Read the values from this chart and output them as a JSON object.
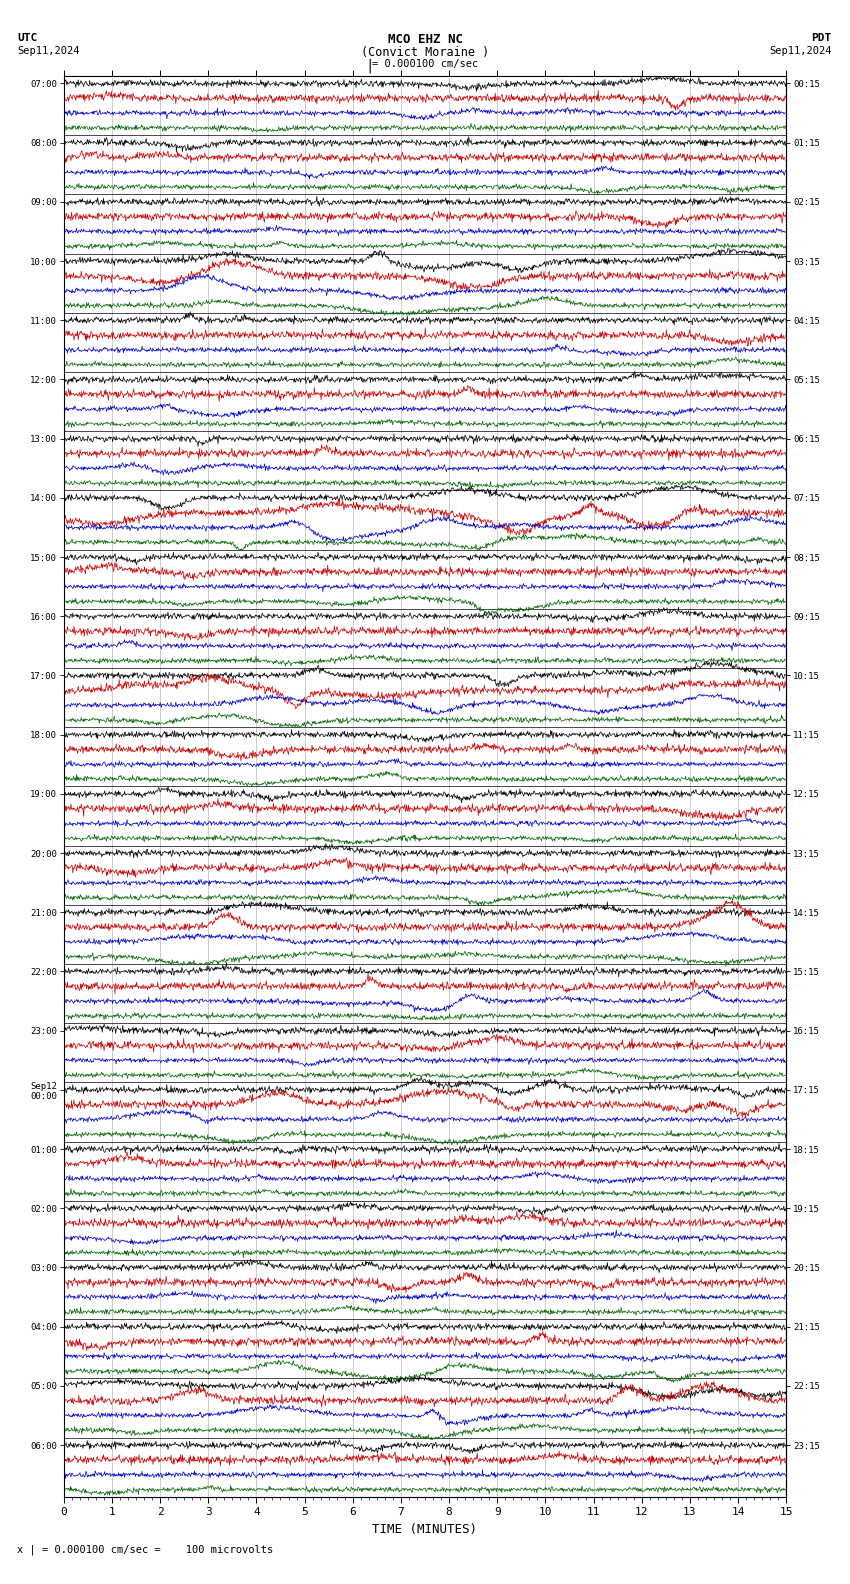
{
  "title_line1": "MCO EHZ NC",
  "title_line2": "(Convict Moraine )",
  "scale_label": "= 0.000100 cm/sec",
  "utc_label": "UTC",
  "utc_date": "Sep11,2024",
  "pdt_label": "PDT",
  "pdt_date": "Sep11,2024",
  "xlabel": "TIME (MINUTES)",
  "footer": "= 0.000100 cm/sec =    100 microvolts",
  "xmin": 0,
  "xmax": 15,
  "bg_color": "#ffffff",
  "trace_colors": [
    "#000000",
    "#cc0000",
    "#0000cc",
    "#006600"
  ],
  "left_times": [
    "07:00",
    "08:00",
    "09:00",
    "10:00",
    "11:00",
    "12:00",
    "13:00",
    "14:00",
    "15:00",
    "16:00",
    "17:00",
    "18:00",
    "19:00",
    "20:00",
    "21:00",
    "22:00",
    "23:00",
    "Sep12\n00:00",
    "01:00",
    "02:00",
    "03:00",
    "04:00",
    "05:00",
    "06:00"
  ],
  "right_times": [
    "00:15",
    "01:15",
    "02:15",
    "03:15",
    "04:15",
    "05:15",
    "06:15",
    "07:15",
    "08:15",
    "09:15",
    "10:15",
    "11:15",
    "12:15",
    "13:15",
    "14:15",
    "15:15",
    "16:15",
    "17:15",
    "18:15",
    "19:15",
    "20:15",
    "21:15",
    "22:15",
    "23:15"
  ],
  "n_groups": 24,
  "traces_per_group": 4,
  "noise_scales": [
    0.28,
    0.35,
    0.22,
    0.22
  ],
  "figsize": [
    8.5,
    15.84
  ],
  "dpi": 100
}
